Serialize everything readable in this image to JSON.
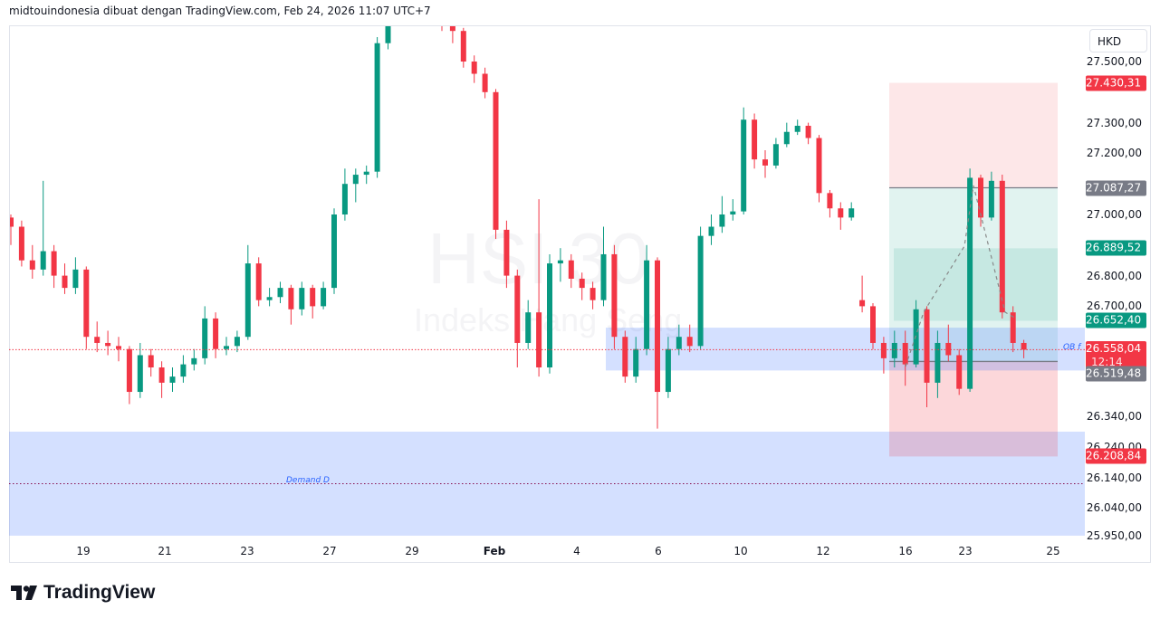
{
  "header": {
    "attribution": "midtouindonesia dibuat dengan TradingView.com, Feb 24, 2026 11:07 UTC+7"
  },
  "watermark": {
    "symbol": "HSI 30",
    "name": "Indeks Hang Seng"
  },
  "currency": "HKD",
  "footer": {
    "logo": "TradingView"
  },
  "colors": {
    "up": "#089981",
    "down": "#f23645",
    "zone": "#2962ff",
    "stop": "#f23645",
    "target": "#089981"
  },
  "annotations": {
    "demand_label": "Demand D",
    "ob_label": "OB f"
  },
  "chart_data": {
    "type": "candlestick",
    "ylim": [
      25950,
      27650
    ],
    "price_ticks": [
      "27.500,00",
      "27.300,00",
      "27.200,00",
      "27.000,00",
      "26.800,00",
      "26.700,00",
      "26.340,00",
      "26.240,00",
      "26.140,00",
      "26.040,00",
      "25.950,00"
    ],
    "price_tick_values": [
      27500,
      27300,
      27200,
      27000,
      26800,
      26700,
      26340,
      26240,
      26140,
      26040,
      25950
    ],
    "x_ticks": [
      "19",
      "21",
      "23",
      "27",
      "29",
      "Feb",
      "4",
      "6",
      "10",
      "12",
      "16",
      "23",
      "25"
    ],
    "price_tags": [
      {
        "label": "27.430,31",
        "value": 27430.31,
        "color": "#f23645"
      },
      {
        "label": "27.087,27",
        "value": 27087.27,
        "color": "#787b86"
      },
      {
        "label": "26.889,52",
        "value": 26889.52,
        "color": "#089981"
      },
      {
        "label": "26.652,40",
        "value": 26652.4,
        "color": "#089981"
      },
      {
        "label": "26.558,04",
        "value": 26558.04,
        "color": "#f23645",
        "sub": "12:14"
      },
      {
        "label": "26.519,48",
        "value": 26519.48,
        "color": "#787b86"
      },
      {
        "label": "26.208,84",
        "value": 26208.84,
        "color": "#f23645"
      }
    ],
    "last_price": 26558.04,
    "zones": {
      "demand": [
        26290,
        25950
      ],
      "demand_mid": 26120,
      "order_block": [
        26630,
        26490
      ]
    },
    "position": {
      "stop_top": 27430.31,
      "entry": 27087.27,
      "target1": 26889.52,
      "target2": 26652.4,
      "lower_line": 26519.48,
      "stop_bottom": 26208.84
    },
    "candles": [
      [
        26990,
        27000,
        26900,
        26960
      ],
      [
        26960,
        26980,
        26830,
        26850
      ],
      [
        26850,
        26900,
        26790,
        26820
      ],
      [
        26820,
        27110,
        26800,
        26880
      ],
      [
        26880,
        26900,
        26760,
        26800
      ],
      [
        26800,
        26840,
        26740,
        26760
      ],
      [
        26760,
        26860,
        26740,
        26820
      ],
      [
        26820,
        26830,
        26560,
        26600
      ],
      [
        26600,
        26650,
        26550,
        26580
      ],
      [
        26580,
        26620,
        26540,
        26570
      ],
      [
        26570,
        26600,
        26520,
        26560
      ],
      [
        26560,
        26570,
        26380,
        26420
      ],
      [
        26420,
        26580,
        26400,
        26540
      ],
      [
        26540,
        26560,
        26470,
        26500
      ],
      [
        26500,
        26520,
        26400,
        26450
      ],
      [
        26450,
        26500,
        26420,
        26470
      ],
      [
        26470,
        26540,
        26450,
        26510
      ],
      [
        26510,
        26560,
        26490,
        26530
      ],
      [
        26530,
        26700,
        26510,
        26660
      ],
      [
        26660,
        26680,
        26530,
        26560
      ],
      [
        26560,
        26600,
        26540,
        26570
      ],
      [
        26570,
        26620,
        26550,
        26600
      ],
      [
        26600,
        26900,
        26590,
        26840
      ],
      [
        26840,
        26860,
        26700,
        26720
      ],
      [
        26720,
        26760,
        26700,
        26730
      ],
      [
        26730,
        26780,
        26710,
        26760
      ],
      [
        26760,
        26770,
        26640,
        26690
      ],
      [
        26690,
        26780,
        26670,
        26760
      ],
      [
        26760,
        26770,
        26660,
        26700
      ],
      [
        26700,
        26780,
        26690,
        26760
      ],
      [
        26760,
        27020,
        26740,
        27000
      ],
      [
        27000,
        27150,
        26980,
        27100
      ],
      [
        27100,
        27150,
        27040,
        27130
      ],
      [
        27130,
        27160,
        27100,
        27140
      ],
      [
        27140,
        27580,
        27120,
        27560
      ],
      [
        27560,
        27680,
        27540,
        27640
      ],
      [
        27640,
        27680,
        27620,
        27650
      ],
      [
        27650,
        27680,
        27630,
        27660
      ],
      [
        27660,
        27680,
        27630,
        27650
      ],
      [
        27650,
        27670,
        27620,
        27640
      ],
      [
        27640,
        27660,
        27600,
        27630
      ],
      [
        27630,
        27650,
        27560,
        27600
      ],
      [
        27600,
        27610,
        27480,
        27500
      ],
      [
        27500,
        27520,
        27430,
        27460
      ],
      [
        27460,
        27480,
        27380,
        27400
      ],
      [
        27400,
        27410,
        26920,
        26950
      ],
      [
        26950,
        26980,
        26760,
        26800
      ],
      [
        26800,
        26820,
        26500,
        26580
      ],
      [
        26580,
        26720,
        26560,
        26680
      ],
      [
        26680,
        27050,
        26470,
        26500
      ],
      [
        26500,
        26870,
        26480,
        26840
      ],
      [
        26840,
        26890,
        26780,
        26850
      ],
      [
        26850,
        26870,
        26760,
        26790
      ],
      [
        26790,
        26810,
        26720,
        26760
      ],
      [
        26760,
        26780,
        26690,
        26720
      ],
      [
        26720,
        26960,
        26700,
        26870
      ],
      [
        26870,
        26900,
        26560,
        26600
      ],
      [
        26600,
        26620,
        26450,
        26470
      ],
      [
        26470,
        26600,
        26450,
        26560
      ],
      [
        26560,
        26900,
        26540,
        26850
      ],
      [
        26850,
        26860,
        26300,
        26420
      ],
      [
        26420,
        26600,
        26400,
        26560
      ],
      [
        26560,
        26640,
        26540,
        26600
      ],
      [
        26600,
        26640,
        26550,
        26570
      ],
      [
        26570,
        26960,
        26560,
        26930
      ],
      [
        26930,
        27000,
        26900,
        26960
      ],
      [
        26960,
        27060,
        26940,
        27000
      ],
      [
        27000,
        27050,
        26980,
        27010
      ],
      [
        27010,
        27350,
        27000,
        27310
      ],
      [
        27310,
        27330,
        27150,
        27180
      ],
      [
        27180,
        27210,
        27120,
        27160
      ],
      [
        27160,
        27250,
        27150,
        27230
      ],
      [
        27230,
        27300,
        27220,
        27270
      ],
      [
        27270,
        27310,
        27260,
        27290
      ],
      [
        27290,
        27300,
        27230,
        27250
      ],
      [
        27250,
        27260,
        27040,
        27070
      ],
      [
        27070,
        27080,
        26990,
        27020
      ],
      [
        27020,
        27040,
        26950,
        26990
      ],
      [
        26990,
        27040,
        26980,
        27020
      ],
      [
        26720,
        26800,
        26680,
        26700
      ],
      [
        26700,
        26710,
        26560,
        26580
      ],
      [
        26580,
        26600,
        26480,
        26530
      ],
      [
        26530,
        26620,
        26500,
        26580
      ],
      [
        26580,
        26620,
        26440,
        26510
      ],
      [
        26510,
        26720,
        26500,
        26690
      ],
      [
        26690,
        26700,
        26370,
        26450
      ],
      [
        26450,
        26620,
        26400,
        26580
      ],
      [
        26580,
        26640,
        26520,
        26540
      ],
      [
        26540,
        26560,
        26410,
        26430
      ],
      [
        26430,
        27150,
        26420,
        27120
      ],
      [
        27120,
        27130,
        26960,
        26990
      ],
      [
        26990,
        27140,
        26980,
        27110
      ],
      [
        27110,
        27130,
        26660,
        26680
      ],
      [
        26680,
        26700,
        26550,
        26580
      ],
      [
        26580,
        26590,
        26530,
        26558
      ]
    ]
  }
}
